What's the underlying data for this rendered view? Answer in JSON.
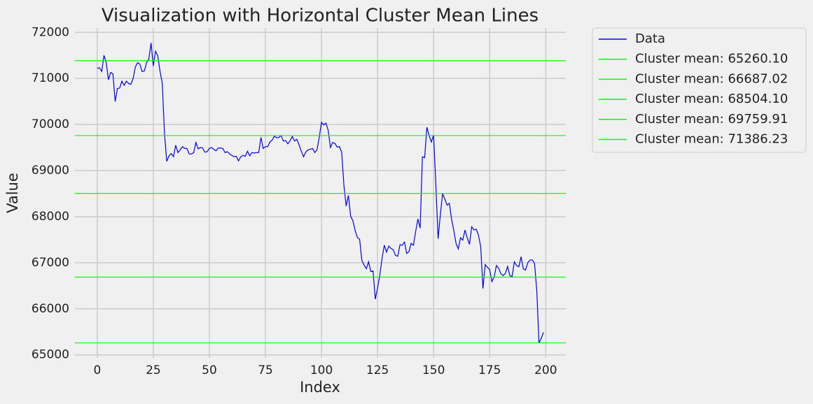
{
  "chart_data": {
    "type": "line",
    "title": "Visualization with Horizontal Cluster Mean Lines",
    "x_label": "Index",
    "y_label": "Value",
    "x": [
      0,
      1,
      2,
      3,
      4,
      5,
      6,
      7,
      8,
      9,
      10,
      11,
      12,
      13,
      14,
      15,
      16,
      17,
      18,
      19,
      20,
      21,
      22,
      23,
      24,
      25,
      26,
      27,
      28,
      29,
      30,
      31,
      32,
      33,
      34,
      35,
      36,
      37,
      38,
      39,
      40,
      41,
      42,
      43,
      44,
      45,
      46,
      47,
      48,
      49,
      50,
      51,
      52,
      53,
      54,
      55,
      56,
      57,
      58,
      59,
      60,
      61,
      62,
      63,
      64,
      65,
      66,
      67,
      68,
      69,
      70,
      71,
      72,
      73,
      74,
      75,
      76,
      77,
      78,
      79,
      80,
      81,
      82,
      83,
      84,
      85,
      86,
      87,
      88,
      89,
      90,
      91,
      92,
      93,
      94,
      95,
      96,
      97,
      98,
      99,
      100,
      101,
      102,
      103,
      104,
      105,
      106,
      107,
      108,
      109,
      110,
      111,
      112,
      113,
      114,
      115,
      116,
      117,
      118,
      119,
      120,
      121,
      122,
      123,
      124,
      125,
      126,
      127,
      128,
      129,
      130,
      131,
      132,
      133,
      134,
      135,
      136,
      137,
      138,
      139,
      140,
      141,
      142,
      143,
      144,
      145,
      146,
      147,
      148,
      149,
      150,
      151,
      152,
      153,
      154,
      155,
      156,
      157,
      158,
      159,
      160,
      161,
      162,
      163,
      164,
      165,
      166,
      167,
      168,
      169,
      170,
      171,
      172,
      173,
      174,
      175,
      176,
      177,
      178,
      179,
      180,
      181,
      182,
      183,
      184,
      185,
      186,
      187,
      188,
      189,
      190,
      191,
      192,
      193,
      194,
      195,
      196,
      197,
      198,
      199
    ],
    "series": [
      {
        "name": "Data",
        "color": "#0000ff",
        "values": [
          71220,
          71230,
          71150,
          71500,
          71350,
          70970,
          71130,
          71100,
          70500,
          70780,
          70790,
          70940,
          70850,
          70940,
          70890,
          70870,
          71000,
          71250,
          71340,
          71310,
          71150,
          71160,
          71340,
          71420,
          71770,
          71270,
          71590,
          71490,
          71150,
          70900,
          69800,
          69200,
          69320,
          69370,
          69300,
          69550,
          69390,
          69450,
          69520,
          69480,
          69480,
          69360,
          69360,
          69390,
          69610,
          69470,
          69500,
          69490,
          69400,
          69410,
          69480,
          69500,
          69460,
          69430,
          69490,
          69490,
          69480,
          69390,
          69410,
          69360,
          69330,
          69300,
          69310,
          69210,
          69300,
          69330,
          69310,
          69420,
          69320,
          69390,
          69380,
          69390,
          69390,
          69720,
          69480,
          69520,
          69520,
          69620,
          69660,
          69750,
          69710,
          69720,
          69760,
          69640,
          69650,
          69580,
          69650,
          69740,
          69640,
          69680,
          69560,
          69420,
          69300,
          69400,
          69450,
          69460,
          69480,
          69390,
          69450,
          69720,
          70050,
          69990,
          70030,
          69870,
          69500,
          69610,
          69590,
          69510,
          69520,
          69400,
          68680,
          68230,
          68460,
          68010,
          67910,
          67700,
          67550,
          67510,
          67050,
          66950,
          66870,
          67020,
          66810,
          66820,
          66210,
          66450,
          66730,
          67090,
          67380,
          67230,
          67360,
          67310,
          67280,
          67160,
          67140,
          67390,
          67380,
          67450,
          67200,
          67240,
          67420,
          67380,
          67680,
          67950,
          67750,
          69300,
          69280,
          69940,
          69760,
          69620,
          69770,
          68700,
          67520,
          68040,
          68500,
          68380,
          68250,
          68290,
          67950,
          67700,
          67420,
          67300,
          67540,
          67490,
          67710,
          67540,
          67400,
          67780,
          67710,
          67730,
          67600,
          67350,
          66440,
          66960,
          66900,
          66850,
          66590,
          66690,
          66940,
          66880,
          66760,
          66720,
          66770,
          66920,
          66720,
          66700,
          67020,
          66940,
          66910,
          67130,
          66870,
          66840,
          67000,
          67060,
          67060,
          66990,
          66400,
          65260,
          65360,
          65490
        ]
      }
    ],
    "hlines": [
      {
        "name": "Cluster mean: 65260.10",
        "color": "#00ff00",
        "value": 65260.1
      },
      {
        "name": "Cluster mean: 66687.02",
        "color": "#00ff00",
        "value": 66687.02
      },
      {
        "name": "Cluster mean: 68504.10",
        "color": "#00ff00",
        "value": 68504.1
      },
      {
        "name": "Cluster mean: 69759.91",
        "color": "#00ff00",
        "value": 69759.91
      },
      {
        "name": "Cluster mean: 71386.23",
        "color": "#00ff00",
        "value": 71386.23
      }
    ],
    "xlim": [
      -9.95,
      208.95
    ],
    "ylim": [
      64935,
      72095
    ],
    "xticks": [
      0,
      25,
      50,
      75,
      100,
      125,
      150,
      175,
      200
    ],
    "yticks": [
      65000,
      66000,
      67000,
      68000,
      69000,
      70000,
      71000,
      72000
    ],
    "grid": true,
    "legend": "outside upper right"
  }
}
